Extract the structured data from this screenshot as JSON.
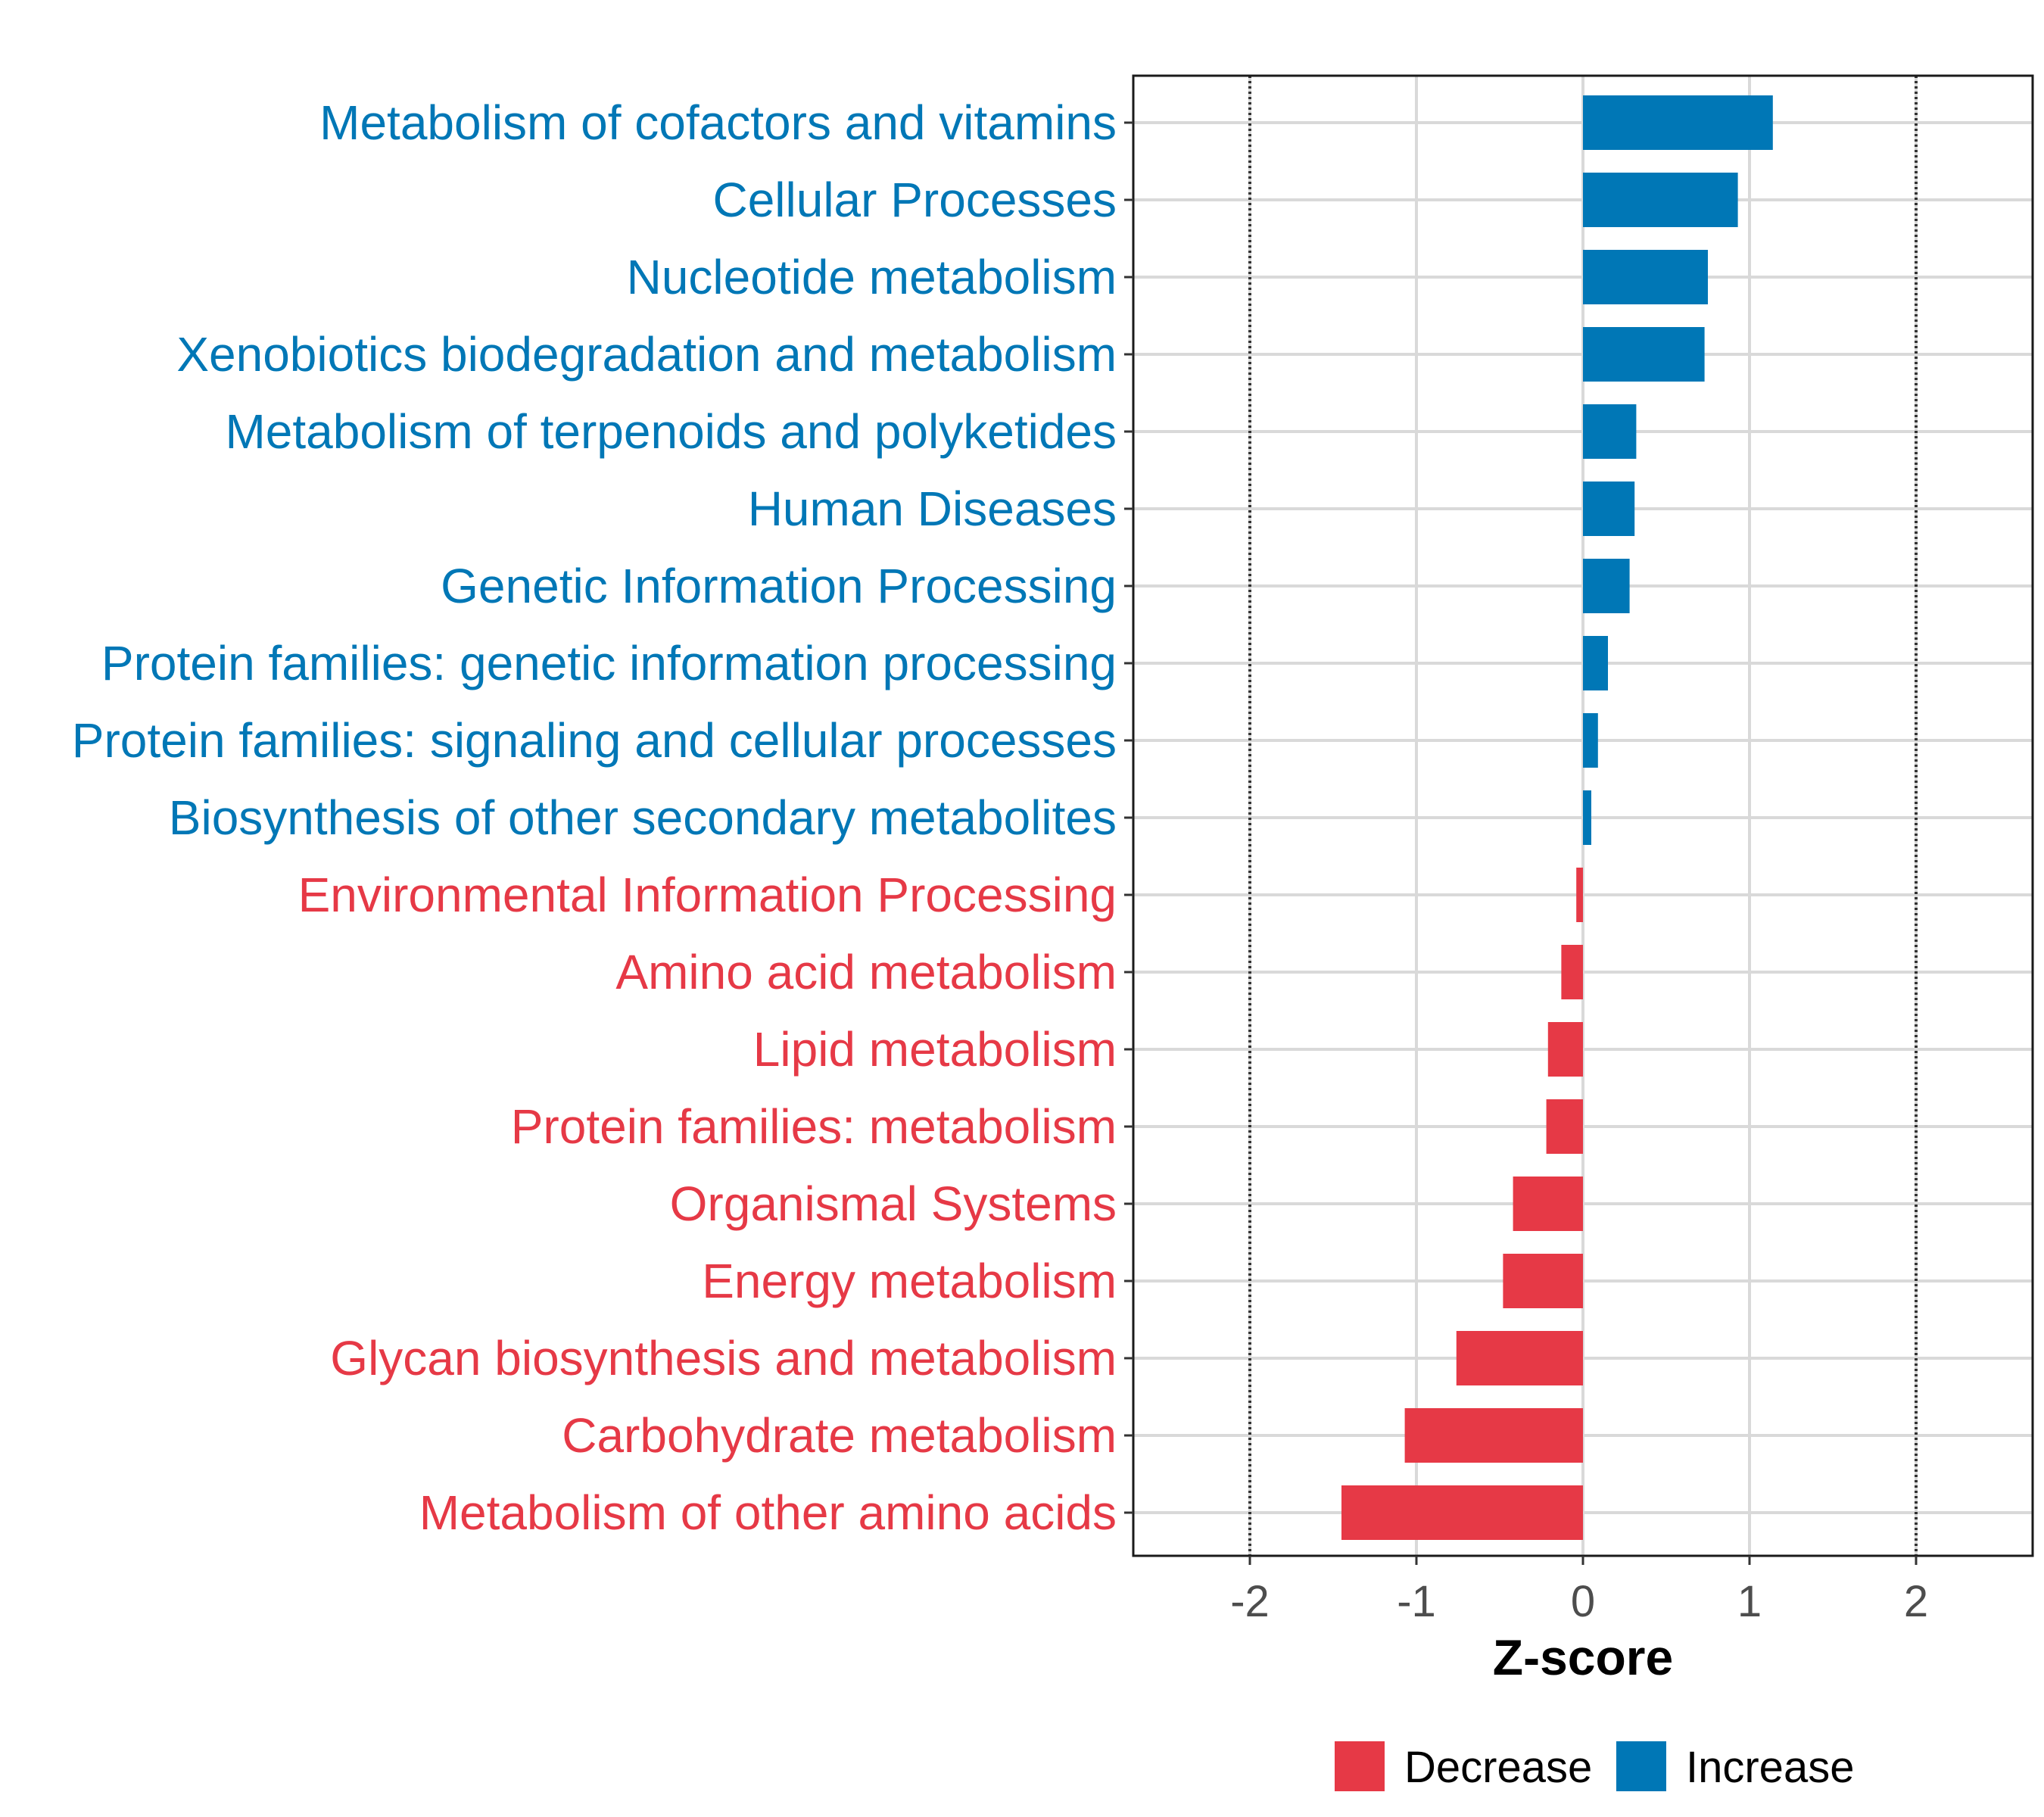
{
  "chart_data": {
    "type": "bar",
    "orientation": "horizontal",
    "xlabel": "Z-score",
    "xlim": [
      -2.7,
      2.7
    ],
    "xticks": [
      -2,
      -1,
      0,
      1,
      2
    ],
    "xtick_labels": [
      "-2",
      "-1",
      "0",
      "1",
      "2"
    ],
    "reference_lines": [
      -2,
      2
    ],
    "grid": true,
    "legend_position": "bottom",
    "colors": {
      "Decrease": "#e63946",
      "Increase": "#0077b6"
    },
    "legend": [
      {
        "name": "Decrease",
        "color": "#e63946"
      },
      {
        "name": "Increase",
        "color": "#0077b6"
      }
    ],
    "categories": [
      "Metabolism of cofactors and vitamins",
      "Cellular Processes",
      "Nucleotide metabolism",
      "Xenobiotics biodegradation and metabolism",
      "Metabolism of terpenoids and polyketides",
      "Human Diseases",
      "Genetic Information Processing",
      "Protein families: genetic information processing",
      "Protein families: signaling and cellular processes",
      "Biosynthesis of other secondary metabolites",
      "Environmental Information Processing",
      "Amino acid metabolism",
      "Lipid metabolism",
      "Protein families: metabolism",
      "Organismal Systems",
      "Energy metabolism",
      "Glycan biosynthesis and metabolism",
      "Carbohydrate metabolism",
      "Metabolism of other amino acids"
    ],
    "values": [
      1.14,
      0.93,
      0.75,
      0.73,
      0.32,
      0.31,
      0.28,
      0.15,
      0.09,
      0.05,
      -0.04,
      -0.13,
      -0.21,
      -0.22,
      -0.42,
      -0.48,
      -0.76,
      -1.07,
      -1.45
    ],
    "groups": [
      "Increase",
      "Increase",
      "Increase",
      "Increase",
      "Increase",
      "Increase",
      "Increase",
      "Increase",
      "Increase",
      "Increase",
      "Decrease",
      "Decrease",
      "Decrease",
      "Decrease",
      "Decrease",
      "Decrease",
      "Decrease",
      "Decrease",
      "Decrease"
    ]
  }
}
